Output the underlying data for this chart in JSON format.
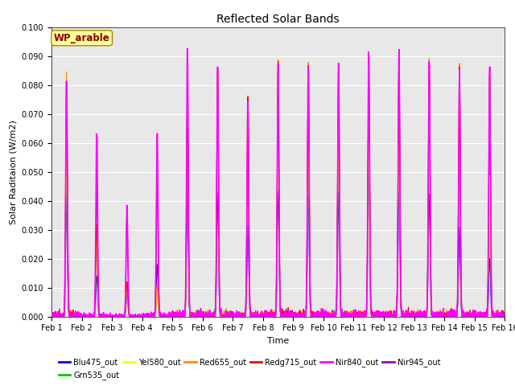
{
  "title": "Reflected Solar Bands",
  "xlabel": "Time",
  "ylabel": "Solar Raditaion (W/m2)",
  "ylim": [
    0,
    0.1
  ],
  "yticks": [
    0.0,
    0.01,
    0.02,
    0.03,
    0.04,
    0.05,
    0.06,
    0.07,
    0.08,
    0.09,
    0.1
  ],
  "annotation": "WP_arable",
  "annotation_color": "#8B0000",
  "annotation_bg": "#FFFF99",
  "background_color": "#E8E8E8",
  "series": [
    {
      "name": "Blu475_out",
      "color": "#0000FF",
      "lw": 0.8,
      "zorder": 3
    },
    {
      "name": "Grn535_out",
      "color": "#00CC00",
      "lw": 0.8,
      "zorder": 4
    },
    {
      "name": "Yel580_out",
      "color": "#FFFF00",
      "lw": 0.8,
      "zorder": 5
    },
    {
      "name": "Red655_out",
      "color": "#FF8C00",
      "lw": 0.8,
      "zorder": 6
    },
    {
      "name": "Redg715_out",
      "color": "#FF0000",
      "lw": 0.8,
      "zorder": 7
    },
    {
      "name": "Nir840_out",
      "color": "#FF00FF",
      "lw": 1.2,
      "zorder": 8
    },
    {
      "name": "Nir945_out",
      "color": "#9900CC",
      "lw": 0.8,
      "zorder": 2
    }
  ],
  "day_peaks": [
    {
      "day": 1,
      "peaks": [
        0.04,
        0.054,
        0.054,
        0.084,
        0.082,
        0.081,
        0.052
      ]
    },
    {
      "day": 2,
      "peaks": [
        0.014,
        0.027,
        0.027,
        0.032,
        0.032,
        0.064,
        0.044
      ]
    },
    {
      "day": 3,
      "peaks": [
        0.008,
        0.011,
        0.011,
        0.012,
        0.012,
        0.038,
        0.036
      ]
    },
    {
      "day": 4,
      "peaks": [
        0.018,
        0.01,
        0.01,
        0.011,
        0.047,
        0.063,
        0.053
      ]
    },
    {
      "day": 5,
      "peaks": [
        0.044,
        0.076,
        0.074,
        0.075,
        0.074,
        0.093,
        0.073
      ]
    },
    {
      "day": 6,
      "peaks": [
        0.043,
        0.066,
        0.06,
        0.087,
        0.086,
        0.086,
        0.082
      ]
    },
    {
      "day": 7,
      "peaks": [
        0.031,
        0.063,
        0.055,
        0.076,
        0.075,
        0.075,
        0.062
      ]
    },
    {
      "day": 8,
      "peaks": [
        0.043,
        0.066,
        0.06,
        0.088,
        0.087,
        0.087,
        0.079
      ]
    },
    {
      "day": 9,
      "peaks": [
        0.042,
        0.066,
        0.06,
        0.087,
        0.086,
        0.087,
        0.078
      ]
    },
    {
      "day": 10,
      "peaks": [
        0.043,
        0.066,
        0.06,
        0.087,
        0.086,
        0.087,
        0.078
      ]
    },
    {
      "day": 11,
      "peaks": [
        0.055,
        0.066,
        0.06,
        0.088,
        0.086,
        0.091,
        0.08
      ]
    },
    {
      "day": 12,
      "peaks": [
        0.043,
        0.066,
        0.06,
        0.091,
        0.09,
        0.091,
        0.083
      ]
    },
    {
      "day": 13,
      "peaks": [
        0.043,
        0.066,
        0.06,
        0.088,
        0.087,
        0.088,
        0.082
      ]
    },
    {
      "day": 14,
      "peaks": [
        0.031,
        0.066,
        0.06,
        0.088,
        0.087,
        0.085,
        0.068
      ]
    },
    {
      "day": 15,
      "peaks": [
        0.02,
        0.055,
        0.048,
        0.085,
        0.084,
        0.085,
        0.068
      ]
    }
  ],
  "xtick_labels": [
    "Feb 1",
    "Feb 2",
    "Feb 3",
    "Feb 4",
    "Feb 5",
    "Feb 6",
    "Feb 7",
    "Feb 8",
    "Feb 9",
    "Feb 10",
    "Feb 11",
    "Feb 12",
    "Feb 13",
    "Feb 14",
    "Feb 15",
    "Feb 16"
  ],
  "n_days": 15,
  "pts_per_day": 200
}
